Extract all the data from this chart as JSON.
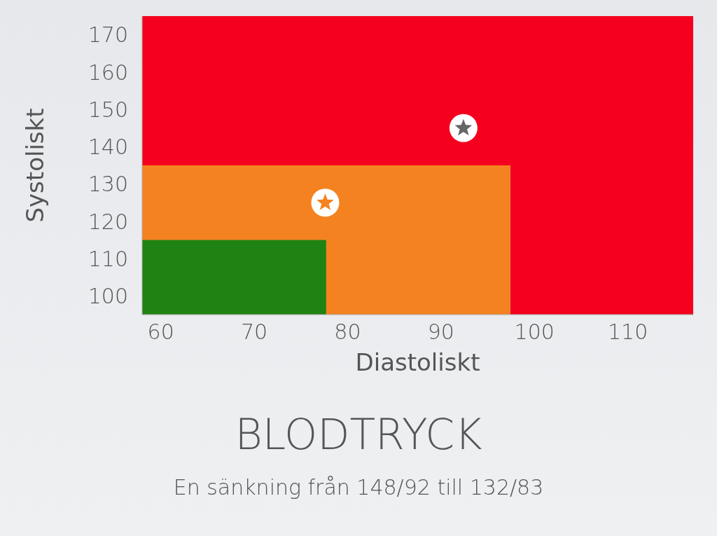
{
  "chart_data": {
    "type": "area",
    "title": "BLODTRYCK",
    "subtitle": "En sänkning från 148/92 till 132/83",
    "xlabel": "Diastoliskt",
    "ylabel": "Systoliskt",
    "xlim": [
      58,
      117
    ],
    "xticks": [
      60,
      70,
      80,
      90,
      100,
      110
    ],
    "ylim": [
      95,
      175
    ],
    "yticks": [
      100,
      110,
      120,
      130,
      140,
      150,
      160,
      170
    ],
    "bands": [
      {
        "axis": "y",
        "from": 135,
        "to": 175,
        "color": "#f5001e"
      },
      {
        "axis": "x",
        "from": 97.4,
        "to": 117,
        "color": "#f5001e"
      }
    ],
    "series": [
      {
        "color": "#f58220",
        "x": [
          58,
          97.4
        ],
        "values": [
          135,
          135
        ]
      },
      {
        "color": "#1e8312",
        "x": [
          58,
          77.7
        ],
        "values": [
          115,
          115
        ]
      },
      {
        "type": "scatter",
        "marker": "star",
        "color": "#666666",
        "x": [
          92.4
        ],
        "values": [
          145
        ]
      },
      {
        "type": "scatter",
        "marker": "star",
        "color": "#f58220",
        "x": [
          77.6
        ],
        "values": [
          125
        ]
      }
    ]
  }
}
